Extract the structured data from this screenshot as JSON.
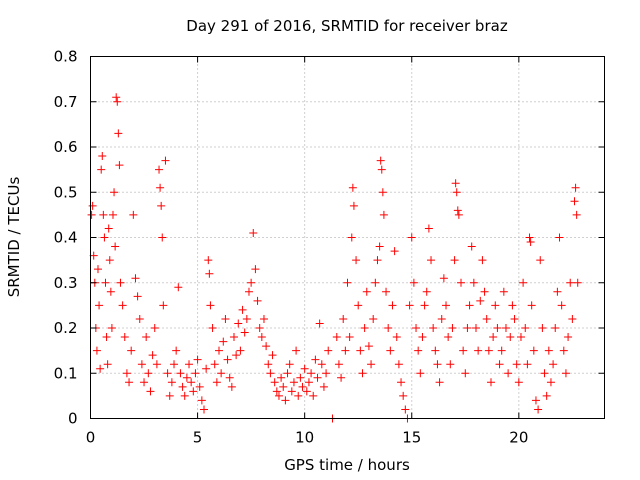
{
  "chart_data": {
    "type": "scatter",
    "title": "Day 291 of 2016, SRMTID for receiver braz",
    "xlabel": "GPS time / hours",
    "ylabel": "SRMTID / TECUs",
    "xlim": [
      0,
      24
    ],
    "ylim": [
      0,
      0.8
    ],
    "xticks": [
      0,
      5,
      10,
      15,
      20
    ],
    "xtick_labels": [
      "0",
      "5",
      "10",
      "15",
      "20"
    ],
    "yticks": [
      0,
      0.1,
      0.2,
      0.3,
      0.4,
      0.5,
      0.6,
      0.7,
      0.8
    ],
    "ytick_labels": [
      "0",
      "0.1",
      "0.2",
      "0.3",
      "0.4",
      "0.5",
      "0.6",
      "0.7",
      "0.8"
    ],
    "grid": true,
    "marker": "plus",
    "color": "#ff0000",
    "series": [
      {
        "name": "SRMTID",
        "points": [
          [
            0.05,
            0.45
          ],
          [
            0.1,
            0.47
          ],
          [
            0.15,
            0.36
          ],
          [
            0.2,
            0.3
          ],
          [
            0.25,
            0.2
          ],
          [
            0.3,
            0.15
          ],
          [
            0.35,
            0.33
          ],
          [
            0.4,
            0.25
          ],
          [
            0.45,
            0.11
          ],
          [
            0.5,
            0.55
          ],
          [
            0.55,
            0.58
          ],
          [
            0.6,
            0.45
          ],
          [
            0.65,
            0.4
          ],
          [
            0.7,
            0.3
          ],
          [
            0.75,
            0.18
          ],
          [
            0.8,
            0.12
          ],
          [
            0.85,
            0.42
          ],
          [
            0.9,
            0.35
          ],
          [
            0.95,
            0.28
          ],
          [
            1.0,
            0.2
          ],
          [
            1.05,
            0.45
          ],
          [
            1.1,
            0.5
          ],
          [
            1.15,
            0.38
          ],
          [
            1.2,
            0.71
          ],
          [
            1.25,
            0.7
          ],
          [
            1.3,
            0.63
          ],
          [
            1.35,
            0.56
          ],
          [
            1.4,
            0.3
          ],
          [
            1.5,
            0.25
          ],
          [
            1.6,
            0.18
          ],
          [
            1.7,
            0.1
          ],
          [
            1.8,
            0.08
          ],
          [
            1.9,
            0.15
          ],
          [
            2.0,
            0.45
          ],
          [
            2.1,
            0.31
          ],
          [
            2.2,
            0.27
          ],
          [
            2.3,
            0.22
          ],
          [
            2.4,
            0.12
          ],
          [
            2.5,
            0.08
          ],
          [
            2.6,
            0.18
          ],
          [
            2.7,
            0.1
          ],
          [
            2.8,
            0.06
          ],
          [
            2.9,
            0.14
          ],
          [
            3.0,
            0.2
          ],
          [
            3.1,
            0.12
          ],
          [
            3.2,
            0.55
          ],
          [
            3.25,
            0.51
          ],
          [
            3.3,
            0.47
          ],
          [
            3.35,
            0.4
          ],
          [
            3.4,
            0.25
          ],
          [
            3.5,
            0.57
          ],
          [
            3.6,
            0.1
          ],
          [
            3.7,
            0.05
          ],
          [
            3.8,
            0.08
          ],
          [
            3.9,
            0.12
          ],
          [
            4.0,
            0.15
          ],
          [
            4.1,
            0.29
          ],
          [
            4.2,
            0.1
          ],
          [
            4.3,
            0.07
          ],
          [
            4.4,
            0.05
          ],
          [
            4.5,
            0.09
          ],
          [
            4.6,
            0.12
          ],
          [
            4.7,
            0.08
          ],
          [
            4.8,
            0.06
          ],
          [
            4.9,
            0.1
          ],
          [
            5.0,
            0.13
          ],
          [
            5.1,
            0.07
          ],
          [
            5.2,
            0.04
          ],
          [
            5.3,
            0.02
          ],
          [
            5.4,
            0.11
          ],
          [
            5.5,
            0.35
          ],
          [
            5.55,
            0.32
          ],
          [
            5.6,
            0.25
          ],
          [
            5.7,
            0.2
          ],
          [
            5.8,
            0.12
          ],
          [
            5.9,
            0.08
          ],
          [
            6.0,
            0.15
          ],
          [
            6.1,
            0.1
          ],
          [
            6.2,
            0.17
          ],
          [
            6.3,
            0.22
          ],
          [
            6.4,
            0.13
          ],
          [
            6.5,
            0.09
          ],
          [
            6.6,
            0.07
          ],
          [
            6.7,
            0.18
          ],
          [
            6.8,
            0.14
          ],
          [
            6.9,
            0.21
          ],
          [
            7.0,
            0.15
          ],
          [
            7.1,
            0.24
          ],
          [
            7.2,
            0.19
          ],
          [
            7.3,
            0.22
          ],
          [
            7.4,
            0.28
          ],
          [
            7.5,
            0.3
          ],
          [
            7.6,
            0.41
          ],
          [
            7.7,
            0.33
          ],
          [
            7.8,
            0.26
          ],
          [
            7.9,
            0.2
          ],
          [
            8.0,
            0.18
          ],
          [
            8.1,
            0.22
          ],
          [
            8.2,
            0.16
          ],
          [
            8.3,
            0.12
          ],
          [
            8.4,
            0.1
          ],
          [
            8.5,
            0.14
          ],
          [
            8.6,
            0.08
          ],
          [
            8.7,
            0.06
          ],
          [
            8.8,
            0.05
          ],
          [
            8.9,
            0.09
          ],
          [
            9.0,
            0.07
          ],
          [
            9.1,
            0.04
          ],
          [
            9.2,
            0.1
          ],
          [
            9.3,
            0.12
          ],
          [
            9.4,
            0.06
          ],
          [
            9.5,
            0.08
          ],
          [
            9.6,
            0.15
          ],
          [
            9.7,
            0.05
          ],
          [
            9.8,
            0.09
          ],
          [
            9.9,
            0.07
          ],
          [
            10.0,
            0.11
          ],
          [
            10.1,
            0.06
          ],
          [
            10.2,
            0.08
          ],
          [
            10.3,
            0.1
          ],
          [
            10.4,
            0.05
          ],
          [
            10.5,
            0.13
          ],
          [
            10.6,
            0.09
          ],
          [
            10.7,
            0.21
          ],
          [
            10.8,
            0.12
          ],
          [
            10.9,
            0.07
          ],
          [
            11.0,
            0.1
          ],
          [
            11.1,
            0.15
          ],
          [
            11.3,
            0.0
          ],
          [
            11.5,
            0.18
          ],
          [
            11.6,
            0.12
          ],
          [
            11.7,
            0.09
          ],
          [
            11.8,
            0.22
          ],
          [
            11.9,
            0.15
          ],
          [
            12.0,
            0.3
          ],
          [
            12.1,
            0.18
          ],
          [
            12.2,
            0.4
          ],
          [
            12.25,
            0.51
          ],
          [
            12.3,
            0.47
          ],
          [
            12.4,
            0.35
          ],
          [
            12.5,
            0.25
          ],
          [
            12.6,
            0.15
          ],
          [
            12.7,
            0.1
          ],
          [
            12.8,
            0.2
          ],
          [
            12.9,
            0.28
          ],
          [
            13.0,
            0.16
          ],
          [
            13.1,
            0.12
          ],
          [
            13.2,
            0.22
          ],
          [
            13.3,
            0.3
          ],
          [
            13.4,
            0.35
          ],
          [
            13.5,
            0.38
          ],
          [
            13.55,
            0.57
          ],
          [
            13.6,
            0.55
          ],
          [
            13.65,
            0.5
          ],
          [
            13.7,
            0.45
          ],
          [
            13.8,
            0.28
          ],
          [
            13.9,
            0.2
          ],
          [
            14.0,
            0.15
          ],
          [
            14.1,
            0.25
          ],
          [
            14.2,
            0.37
          ],
          [
            14.3,
            0.18
          ],
          [
            14.4,
            0.12
          ],
          [
            14.5,
            0.08
          ],
          [
            14.6,
            0.05
          ],
          [
            14.7,
            0.02
          ],
          [
            14.8,
            0.0
          ],
          [
            14.9,
            0.25
          ],
          [
            15.0,
            0.4
          ],
          [
            15.1,
            0.3
          ],
          [
            15.2,
            0.2
          ],
          [
            15.3,
            0.15
          ],
          [
            15.4,
            0.1
          ],
          [
            15.5,
            0.18
          ],
          [
            15.6,
            0.25
          ],
          [
            15.7,
            0.28
          ],
          [
            15.8,
            0.42
          ],
          [
            15.9,
            0.35
          ],
          [
            16.0,
            0.2
          ],
          [
            16.1,
            0.15
          ],
          [
            16.2,
            0.12
          ],
          [
            16.3,
            0.08
          ],
          [
            16.4,
            0.22
          ],
          [
            16.5,
            0.31
          ],
          [
            16.6,
            0.25
          ],
          [
            16.7,
            0.18
          ],
          [
            16.8,
            0.12
          ],
          [
            16.9,
            0.2
          ],
          [
            17.0,
            0.35
          ],
          [
            17.05,
            0.52
          ],
          [
            17.1,
            0.5
          ],
          [
            17.15,
            0.46
          ],
          [
            17.2,
            0.45
          ],
          [
            17.3,
            0.3
          ],
          [
            17.4,
            0.15
          ],
          [
            17.5,
            0.1
          ],
          [
            17.6,
            0.2
          ],
          [
            17.7,
            0.25
          ],
          [
            17.8,
            0.38
          ],
          [
            17.9,
            0.3
          ],
          [
            18.0,
            0.2
          ],
          [
            18.1,
            0.15
          ],
          [
            18.2,
            0.26
          ],
          [
            18.3,
            0.35
          ],
          [
            18.4,
            0.28
          ],
          [
            18.5,
            0.22
          ],
          [
            18.6,
            0.15
          ],
          [
            18.7,
            0.08
          ],
          [
            18.8,
            0.18
          ],
          [
            18.9,
            0.25
          ],
          [
            19.0,
            0.2
          ],
          [
            19.1,
            0.12
          ],
          [
            19.2,
            0.15
          ],
          [
            19.3,
            0.28
          ],
          [
            19.4,
            0.2
          ],
          [
            19.5,
            0.1
          ],
          [
            19.6,
            0.18
          ],
          [
            19.7,
            0.25
          ],
          [
            19.8,
            0.22
          ],
          [
            19.9,
            0.12
          ],
          [
            20.0,
            0.08
          ],
          [
            20.1,
            0.18
          ],
          [
            20.2,
            0.3
          ],
          [
            20.3,
            0.2
          ],
          [
            20.4,
            0.12
          ],
          [
            20.5,
            0.4
          ],
          [
            20.55,
            0.39
          ],
          [
            20.6,
            0.25
          ],
          [
            20.7,
            0.15
          ],
          [
            20.8,
            0.04
          ],
          [
            20.9,
            0.02
          ],
          [
            21.0,
            0.35
          ],
          [
            21.1,
            0.2
          ],
          [
            21.2,
            0.1
          ],
          [
            21.3,
            0.05
          ],
          [
            21.4,
            0.15
          ],
          [
            21.5,
            0.08
          ],
          [
            21.6,
            0.12
          ],
          [
            21.7,
            0.2
          ],
          [
            21.8,
            0.28
          ],
          [
            21.9,
            0.4
          ],
          [
            22.0,
            0.25
          ],
          [
            22.1,
            0.15
          ],
          [
            22.2,
            0.1
          ],
          [
            22.3,
            0.18
          ],
          [
            22.4,
            0.3
          ],
          [
            22.5,
            0.22
          ],
          [
            22.6,
            0.48
          ],
          [
            22.65,
            0.51
          ],
          [
            22.7,
            0.45
          ],
          [
            22.75,
            0.3
          ]
        ]
      }
    ]
  }
}
